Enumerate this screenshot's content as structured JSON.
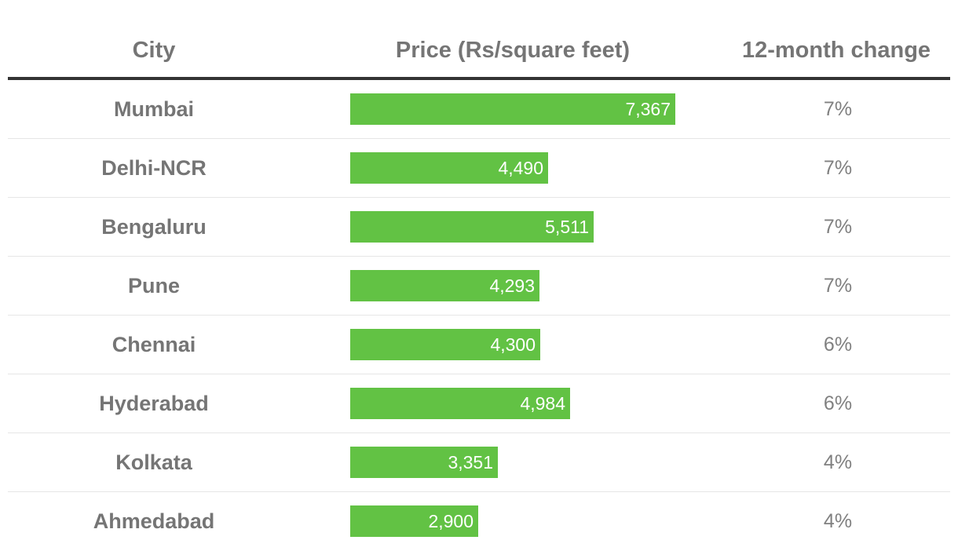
{
  "chart_data": {
    "type": "table",
    "columns": [
      "City",
      "Price (Rs/square feet)",
      "12-month change"
    ],
    "bar_color": "#62c244",
    "price_max": 7367,
    "rows": [
      {
        "city": "Mumbai",
        "price": 7367,
        "price_label": "7,367",
        "change": "7%"
      },
      {
        "city": "Delhi-NCR",
        "price": 4490,
        "price_label": "4,490",
        "change": "7%"
      },
      {
        "city": "Bengaluru",
        "price": 5511,
        "price_label": "5,511",
        "change": "7%"
      },
      {
        "city": "Pune",
        "price": 4293,
        "price_label": "4,293",
        "change": "7%"
      },
      {
        "city": "Chennai",
        "price": 4300,
        "price_label": "4,300",
        "change": "6%"
      },
      {
        "city": "Hyderabad",
        "price": 4984,
        "price_label": "4,984",
        "change": "6%"
      },
      {
        "city": "Kolkata",
        "price": 3351,
        "price_label": "3,351",
        "change": "4%"
      },
      {
        "city": "Ahmedabad",
        "price": 2900,
        "price_label": "2,900",
        "change": "4%"
      }
    ]
  }
}
